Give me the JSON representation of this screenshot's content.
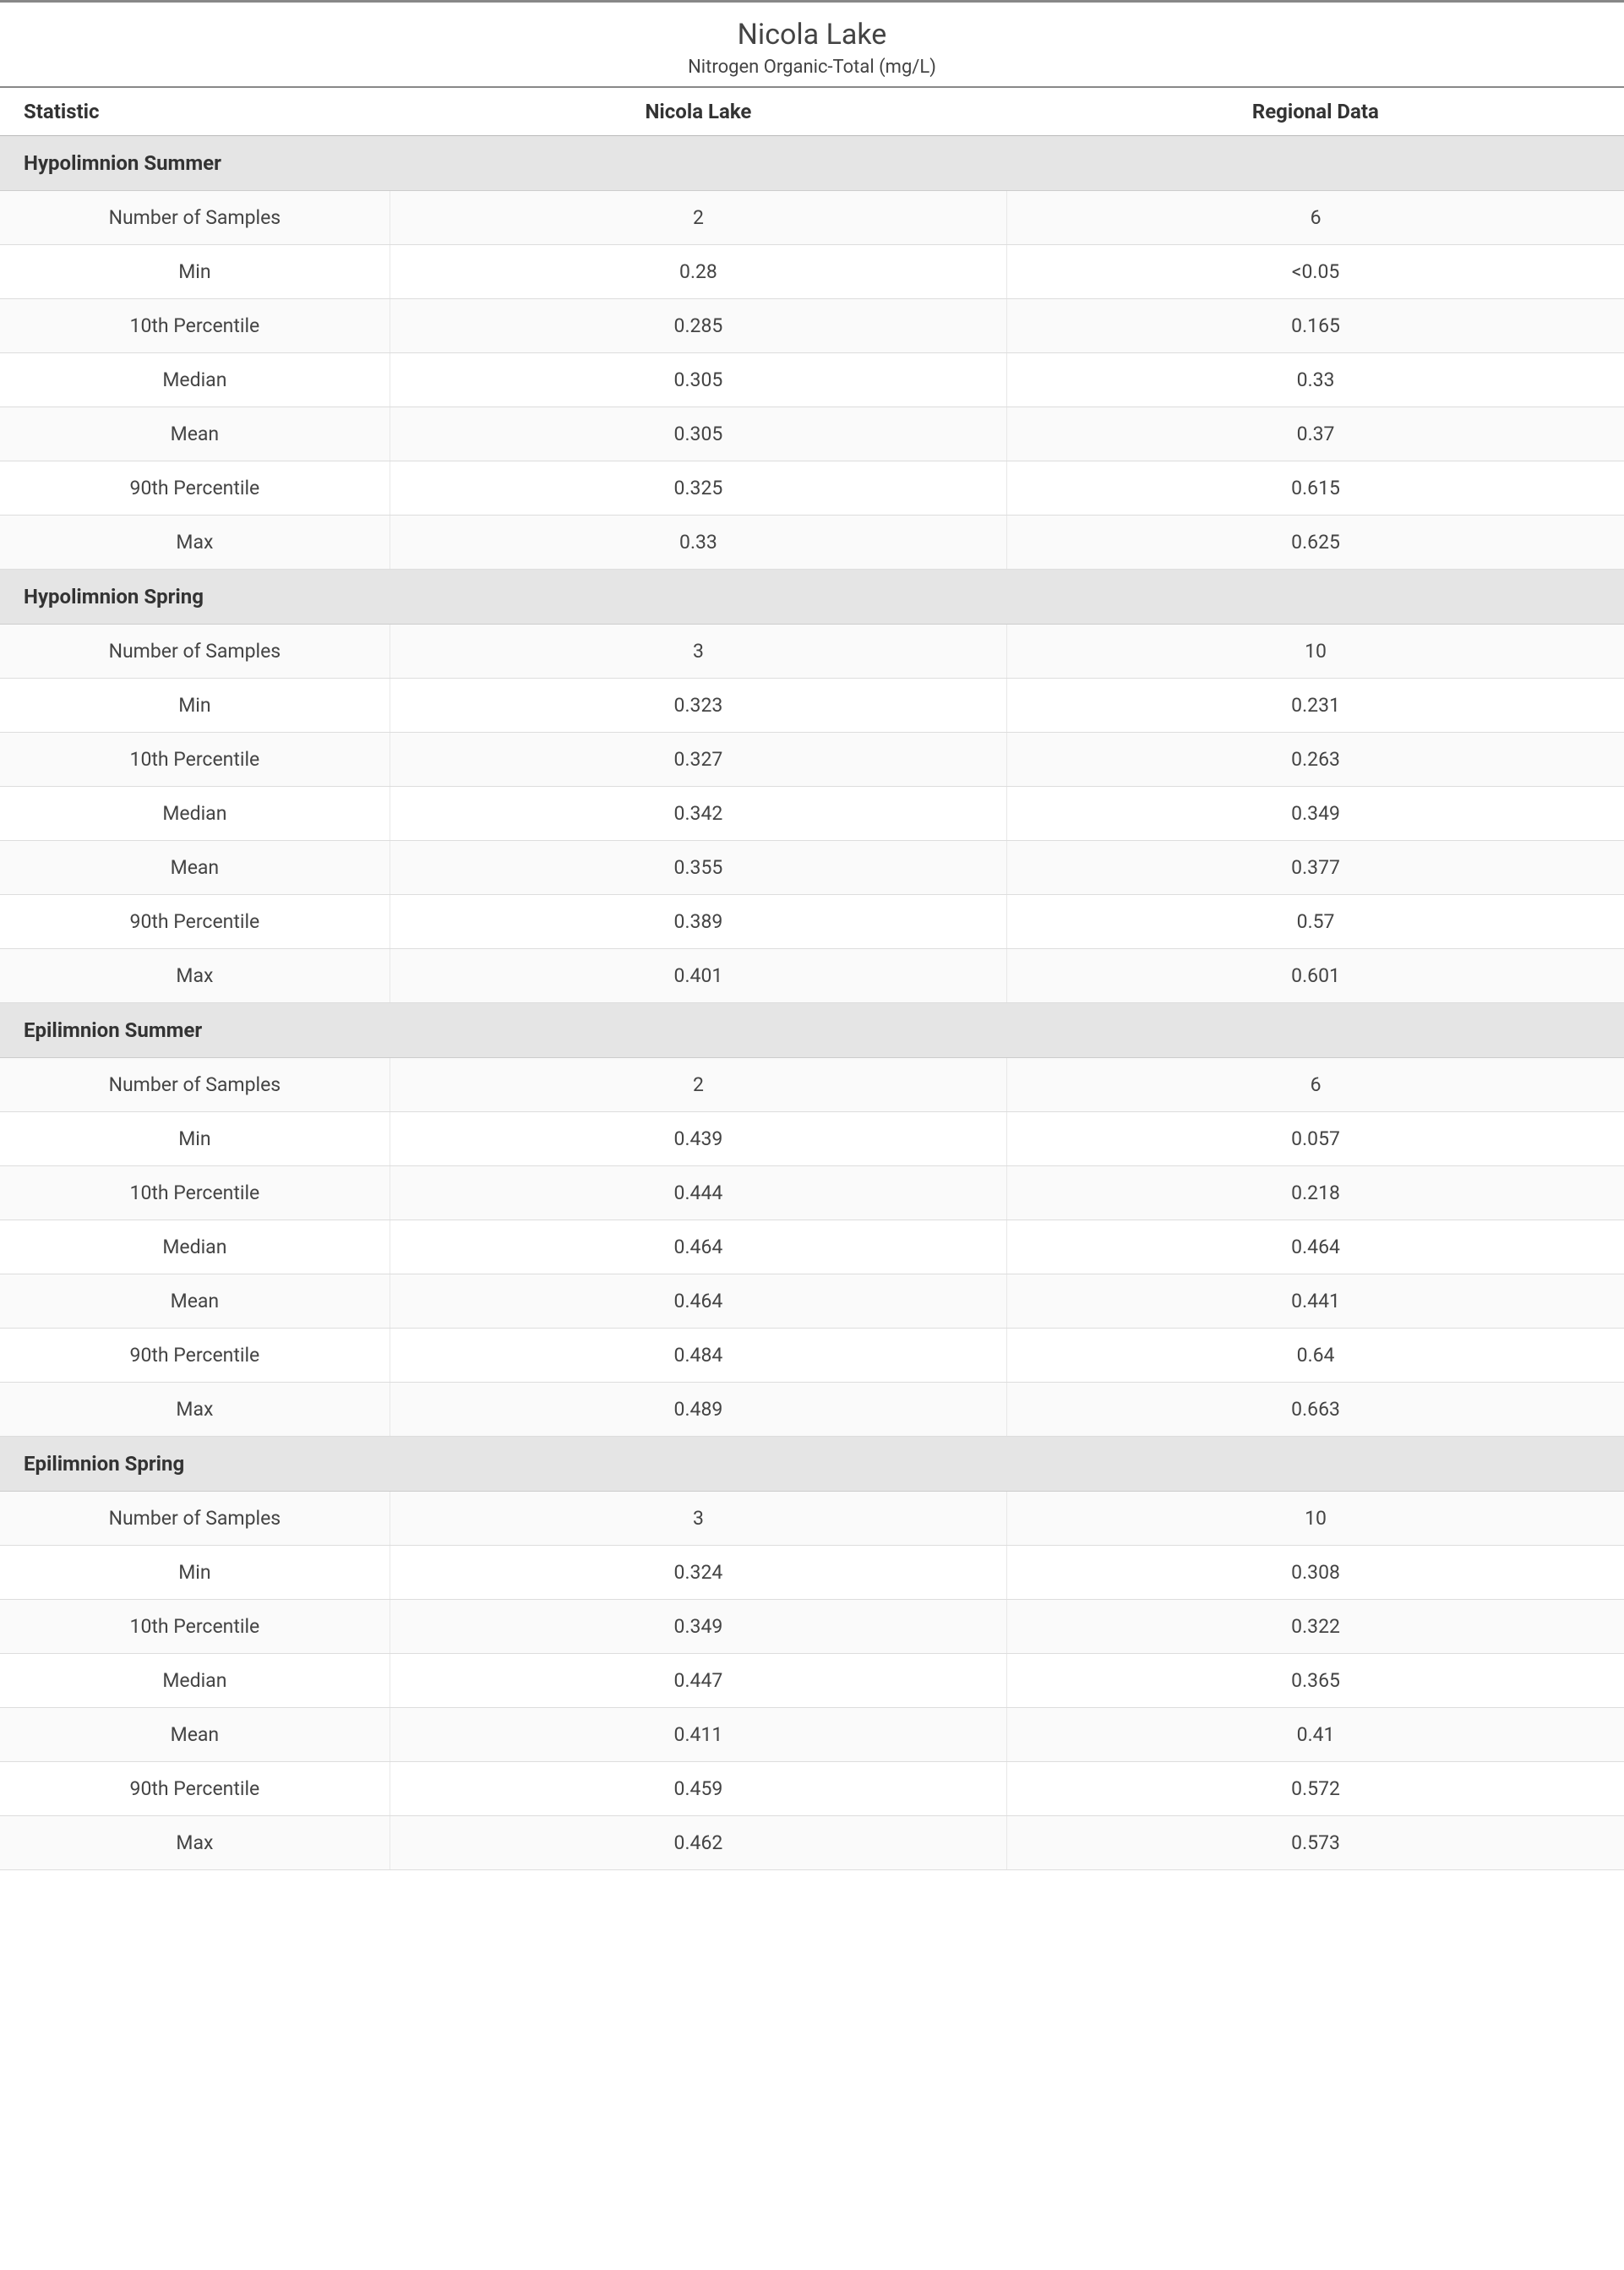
{
  "title": {
    "main": "Nicola Lake",
    "sub": "Nitrogen Organic-Total (mg/L)"
  },
  "columns": {
    "stat": "Statistic",
    "site": "Nicola Lake",
    "region": "Regional Data"
  },
  "stat_labels": {
    "n": "Number of Samples",
    "min": "Min",
    "p10": "10th Percentile",
    "median": "Median",
    "mean": "Mean",
    "p90": "90th Percentile",
    "max": "Max"
  },
  "sections": [
    {
      "name": "Hypolimnion Summer",
      "rows": [
        {
          "stat": "n",
          "site": "2",
          "region": "6"
        },
        {
          "stat": "min",
          "site": "0.28",
          "region": "<0.05"
        },
        {
          "stat": "p10",
          "site": "0.285",
          "region": "0.165"
        },
        {
          "stat": "median",
          "site": "0.305",
          "region": "0.33"
        },
        {
          "stat": "mean",
          "site": "0.305",
          "region": "0.37"
        },
        {
          "stat": "p90",
          "site": "0.325",
          "region": "0.615"
        },
        {
          "stat": "max",
          "site": "0.33",
          "region": "0.625"
        }
      ]
    },
    {
      "name": "Hypolimnion Spring",
      "rows": [
        {
          "stat": "n",
          "site": "3",
          "region": "10"
        },
        {
          "stat": "min",
          "site": "0.323",
          "region": "0.231"
        },
        {
          "stat": "p10",
          "site": "0.327",
          "region": "0.263"
        },
        {
          "stat": "median",
          "site": "0.342",
          "region": "0.349"
        },
        {
          "stat": "mean",
          "site": "0.355",
          "region": "0.377"
        },
        {
          "stat": "p90",
          "site": "0.389",
          "region": "0.57"
        },
        {
          "stat": "max",
          "site": "0.401",
          "region": "0.601"
        }
      ]
    },
    {
      "name": "Epilimnion Summer",
      "rows": [
        {
          "stat": "n",
          "site": "2",
          "region": "6"
        },
        {
          "stat": "min",
          "site": "0.439",
          "region": "0.057"
        },
        {
          "stat": "p10",
          "site": "0.444",
          "region": "0.218"
        },
        {
          "stat": "median",
          "site": "0.464",
          "region": "0.464"
        },
        {
          "stat": "mean",
          "site": "0.464",
          "region": "0.441"
        },
        {
          "stat": "p90",
          "site": "0.484",
          "region": "0.64"
        },
        {
          "stat": "max",
          "site": "0.489",
          "region": "0.663"
        }
      ]
    },
    {
      "name": "Epilimnion Spring",
      "rows": [
        {
          "stat": "n",
          "site": "3",
          "region": "10"
        },
        {
          "stat": "min",
          "site": "0.324",
          "region": "0.308"
        },
        {
          "stat": "p10",
          "site": "0.349",
          "region": "0.322"
        },
        {
          "stat": "median",
          "site": "0.447",
          "region": "0.365"
        },
        {
          "stat": "mean",
          "site": "0.411",
          "region": "0.41"
        },
        {
          "stat": "p90",
          "site": "0.459",
          "region": "0.572"
        },
        {
          "stat": "max",
          "site": "0.462",
          "region": "0.573"
        }
      ]
    }
  ],
  "style": {
    "type": "table",
    "background_color": "#ffffff",
    "section_bg": "#e5e5e5",
    "stripe_odd": "#ffffff",
    "stripe_even": "#fbfbfb",
    "border_color": "#dddddd",
    "header_border": "#888888",
    "text_color": "#333333",
    "title_fontsize": 34,
    "subtitle_fontsize": 22,
    "header_fontsize": 24,
    "cell_fontsize": 23,
    "col_widths_pct": [
      24,
      38,
      38
    ]
  }
}
